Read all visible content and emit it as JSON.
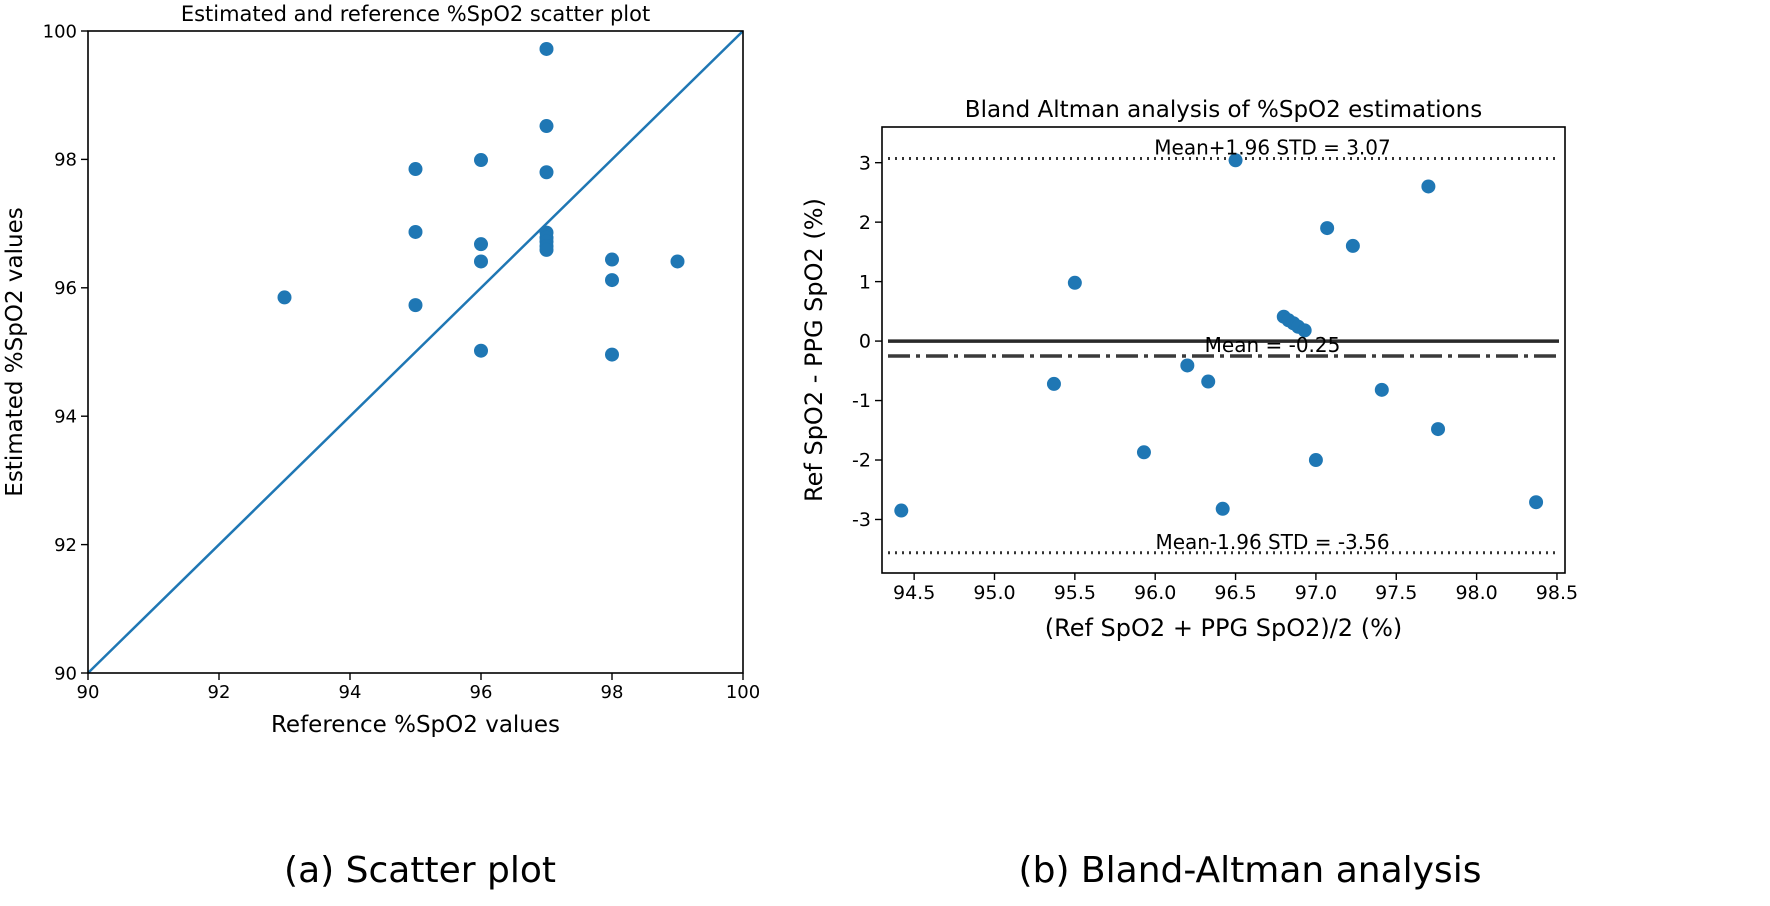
{
  "colors": {
    "marker": "#1f77b4",
    "identity_line": "#1f77b4",
    "axes": "#000000",
    "mean_line": "#3a3a3a",
    "zero_line": "#2a2a2a",
    "limit_line": "#333333"
  },
  "captions": {
    "a": "(a) Scatter plot",
    "b": "(b) Bland-Altman analysis"
  },
  "chart_data": [
    {
      "type": "scatter",
      "title": "Estimated and reference %SpO2 scatter plot",
      "xlabel": "Reference %SpO2 values",
      "ylabel": "Estimated %SpO2 values",
      "xlim": [
        90,
        100
      ],
      "ylim": [
        90,
        100
      ],
      "xticks": [
        90,
        92,
        94,
        96,
        98,
        100
      ],
      "yticks": [
        90,
        92,
        94,
        96,
        98,
        100
      ],
      "grid": false,
      "identity_line": [
        [
          90,
          90
        ],
        [
          100,
          100
        ]
      ],
      "x": [
        93,
        95,
        95,
        95,
        96,
        96,
        96,
        96,
        97,
        97,
        97,
        97,
        97,
        97,
        97,
        97,
        98,
        98,
        98,
        99
      ],
      "y": [
        95.85,
        97.85,
        96.87,
        95.73,
        97.99,
        96.68,
        96.41,
        95.02,
        99.72,
        98.52,
        97.8,
        96.86,
        96.78,
        96.72,
        96.65,
        96.59,
        96.44,
        96.12,
        94.96,
        96.41
      ]
    },
    {
      "type": "scatter",
      "title": "Bland Altman analysis of %SpO2 estimations",
      "xlabel": "(Ref SpO2 + PPG SpO2)/2 (%)",
      "ylabel": "Ref SpO2 - PPG SpO2 (%)",
      "xlim": [
        94.3,
        98.55
      ],
      "ylim": [
        -3.9,
        3.6
      ],
      "xticks": [
        "94.5",
        "95.0",
        "95.5",
        "96.0",
        "96.5",
        "97.0",
        "97.5",
        "98.0",
        "98.5"
      ],
      "yticks": [
        "-3",
        "-2",
        "-1",
        "0",
        "1",
        "2",
        "3"
      ],
      "grid": false,
      "x": [
        94.42,
        95.37,
        95.5,
        95.93,
        96.2,
        96.33,
        96.42,
        96.5,
        96.8,
        96.83,
        96.86,
        96.89,
        96.93,
        97.0,
        97.07,
        97.23,
        97.41,
        97.7,
        97.76,
        98.37
      ],
      "y": [
        -2.85,
        -0.72,
        0.98,
        -1.87,
        -0.41,
        -0.68,
        -2.82,
        3.04,
        0.41,
        0.35,
        0.3,
        0.24,
        0.18,
        -2.0,
        1.9,
        1.6,
        -0.82,
        2.6,
        -1.48,
        -2.71
      ],
      "reference_lines": [
        {
          "name": "upper-limit",
          "value": 3.07,
          "style": "dotted",
          "label": "Mean+1.96 STD = 3.07"
        },
        {
          "name": "zero",
          "value": 0,
          "style": "solid",
          "label": ""
        },
        {
          "name": "mean",
          "value": -0.25,
          "style": "dashdot",
          "label": "Mean = -0.25"
        },
        {
          "name": "lower-limit",
          "value": -3.56,
          "style": "dotted",
          "label": "Mean-1.96 STD = -3.56"
        }
      ]
    }
  ]
}
